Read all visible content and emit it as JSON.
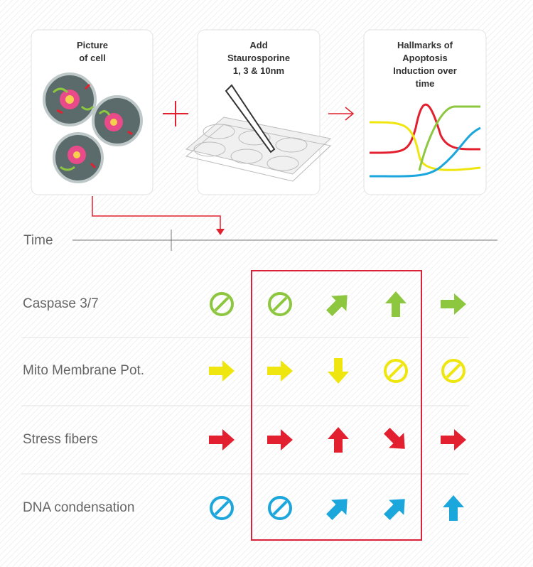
{
  "cards": [
    {
      "lines": [
        "Picture",
        "of cell"
      ]
    },
    {
      "lines": [
        "Add",
        "Staurosporine",
        "1, 3 & 10nm"
      ]
    },
    {
      "lines": [
        "Hallmarks of",
        "Apoptosis",
        "Induction over",
        "time"
      ]
    }
  ],
  "time_label": "Time",
  "rows": [
    "Caspase 3/7",
    "Mito Membrane Pot.",
    "Stress fibers",
    "DNA condensation"
  ]
}
